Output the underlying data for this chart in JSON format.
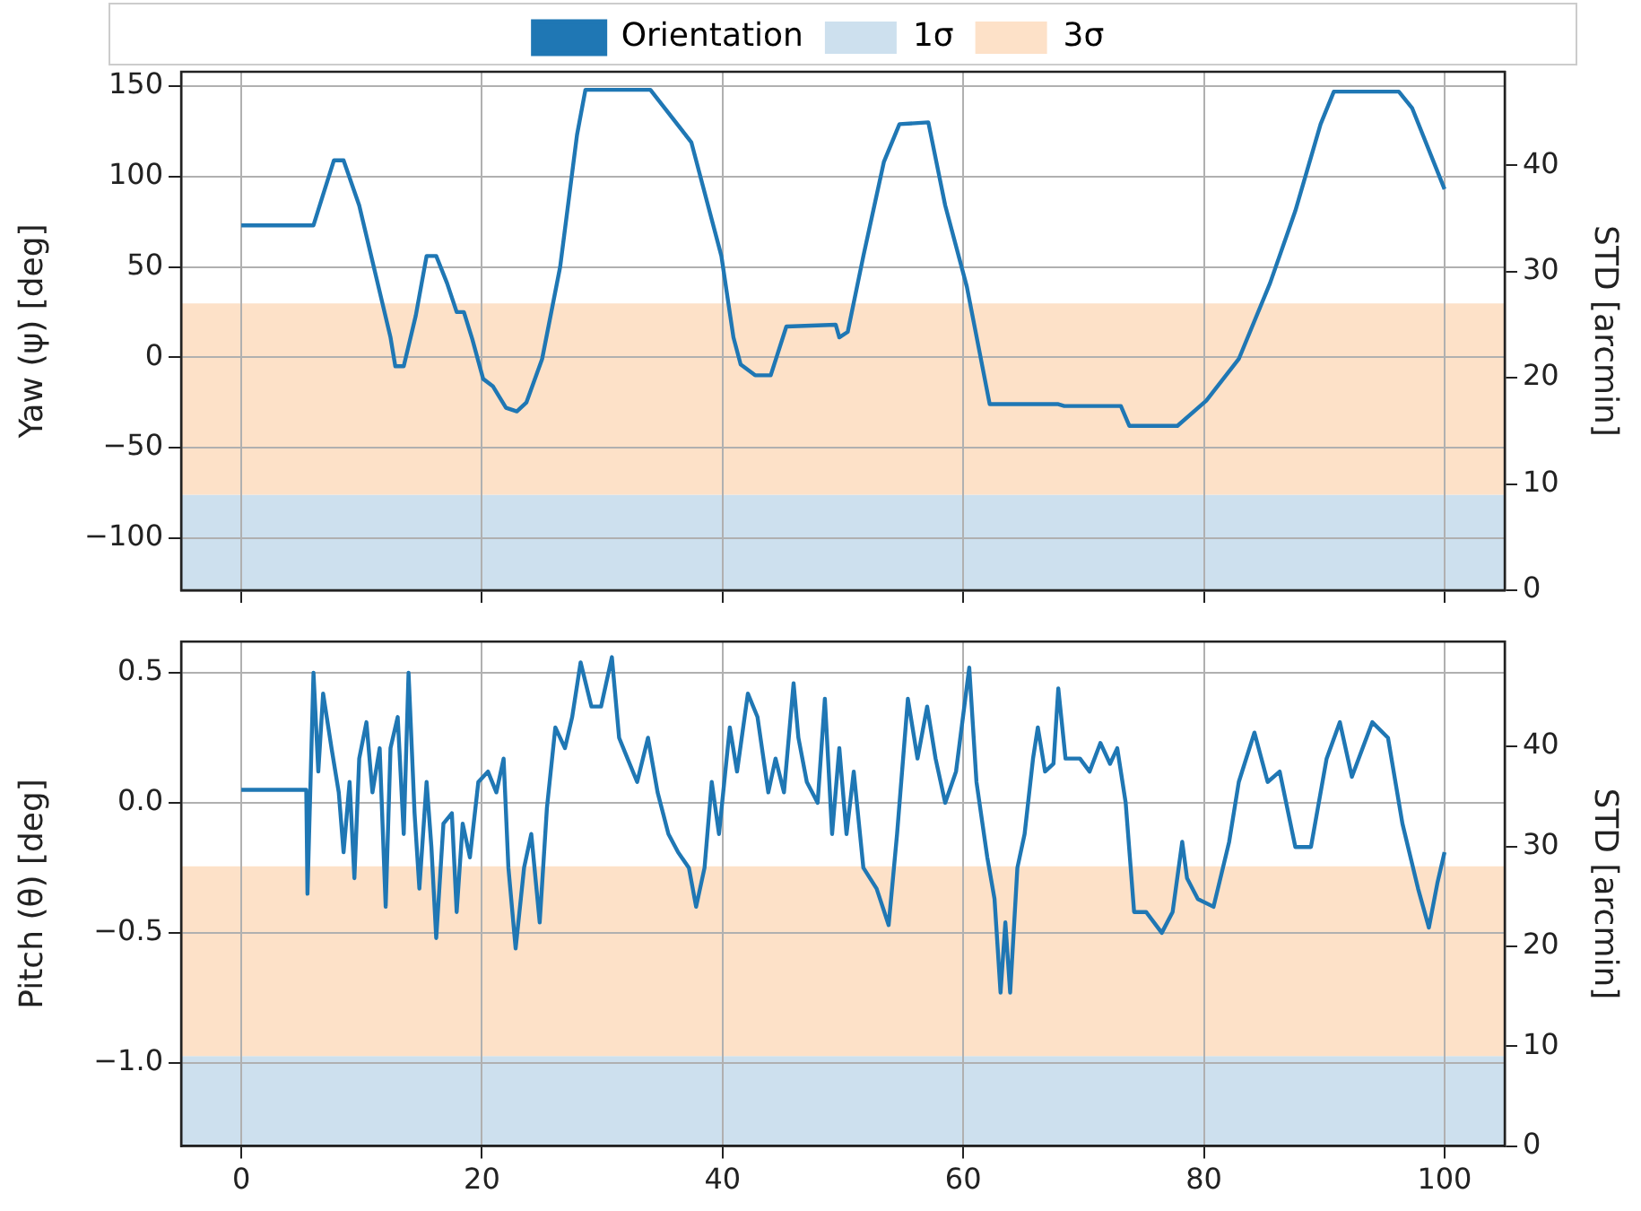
{
  "chart_data": [
    {
      "type": "line",
      "ylabel": "Yaw (ψ) [deg]",
      "y2label": "STD [arcmin]",
      "legend": "top",
      "grid": true,
      "tick_labels": "y",
      "xlim": [
        -5,
        105
      ],
      "xticks": [
        0,
        20,
        40,
        60,
        80,
        100
      ],
      "ylim": [
        -129,
        158
      ],
      "yticks": [
        {
          "value": -100,
          "label": "−100"
        },
        {
          "value": -50,
          "label": "−50"
        },
        0,
        50,
        100,
        150
      ],
      "y2lim": [
        0,
        48.8
      ],
      "y2ticks": [
        0,
        10,
        20,
        30,
        40
      ],
      "bands": [
        {
          "axis": "y2",
          "from": 0,
          "to": 9,
          "label": "1σ",
          "color": "#cde0ee"
        },
        {
          "axis": "y2",
          "from": 9,
          "to": 27,
          "label": "3σ",
          "color": "#fde1c8"
        }
      ],
      "series": [
        {
          "name": "Orientation",
          "color": "#1f77b4",
          "x": [
            0,
            6,
            6.8,
            7.7,
            8.5,
            9.8,
            12.4,
            12.8,
            13.5,
            14.5,
            15.4,
            16.2,
            17.1,
            17.9,
            18.5,
            19.2,
            20.1,
            20.9,
            22,
            22.9,
            23.7,
            25,
            26.5,
            27.9,
            28.6,
            34,
            37.4,
            39.9,
            40.9,
            41.5,
            42.7,
            44,
            45.3,
            49.4,
            49.7,
            50.4,
            51.7,
            53.4,
            54.7,
            57.1,
            58.5,
            60.3,
            62.2,
            67.9,
            68.4,
            73.1,
            73.8,
            77.8,
            80.2,
            82.9,
            85.5,
            87.6,
            89.7,
            90.8,
            96.2,
            97.3,
            100
          ],
          "values": [
            73,
            73,
            90,
            109,
            109,
            84,
            11,
            -5,
            -5,
            23,
            56,
            56,
            41,
            25,
            25,
            10,
            -12,
            -16,
            -28,
            -30,
            -25,
            -1,
            50,
            123,
            148,
            148,
            119,
            56,
            11,
            -4,
            -10,
            -10,
            17,
            18,
            11,
            14,
            56,
            108,
            129,
            130,
            84,
            39,
            -26,
            -26,
            -27,
            -27,
            -38,
            -38,
            -24,
            -1,
            41,
            81,
            129,
            147,
            147,
            138,
            93
          ]
        }
      ]
    },
    {
      "type": "line",
      "ylabel": "Pitch (θ) [deg]",
      "y2label": "STD [arcmin]",
      "grid": true,
      "xlim": [
        -5,
        105
      ],
      "xticks": [
        0,
        20,
        40,
        60,
        80,
        100
      ],
      "ylim": [
        -1.32,
        0.62
      ],
      "yticks": [
        {
          "value": -1,
          "label": "−1.0"
        },
        {
          "value": -0.5,
          "label": "−0.5"
        },
        {
          "value": 0,
          "label": "0.0"
        },
        {
          "value": 0.5,
          "label": "0.5"
        }
      ],
      "y2lim": [
        0,
        50.5
      ],
      "y2ticks": [
        0,
        10,
        20,
        30,
        40
      ],
      "bands": [
        {
          "axis": "y2",
          "from": 0,
          "to": 9,
          "color": "#cde0ee"
        },
        {
          "axis": "y2",
          "from": 9,
          "to": 28,
          "color": "#fde1c8"
        }
      ],
      "series": [
        {
          "color": "#1f77b4",
          "x": [
            0,
            5.4,
            5.5,
            6,
            6.4,
            6.8,
            7.5,
            8.1,
            8.5,
            9,
            9.4,
            9.8,
            10.4,
            10.9,
            11.5,
            12,
            12.4,
            13,
            13.5,
            13.9,
            14.4,
            14.8,
            15.4,
            15.8,
            16.2,
            16.8,
            17.5,
            17.9,
            18.4,
            19,
            19.7,
            20.5,
            21.2,
            21.8,
            22.2,
            22.8,
            23.5,
            24.1,
            24.8,
            25.4,
            26.1,
            26.9,
            27.5,
            28.2,
            29.1,
            29.9,
            30.8,
            31.4,
            32.1,
            32.9,
            33.8,
            34.6,
            35.5,
            36.3,
            37.2,
            37.8,
            38.5,
            39.1,
            39.7,
            40.6,
            41.2,
            42.1,
            42.9,
            43.8,
            44.4,
            45.1,
            45.9,
            46.3,
            47,
            47.9,
            48.5,
            49.1,
            49.7,
            50.3,
            50.9,
            51.7,
            52.8,
            53.8,
            54.5,
            55.4,
            56.2,
            57,
            57.7,
            58.5,
            59.4,
            60.5,
            61.1,
            62,
            62.6,
            63.1,
            63.5,
            63.9,
            64.5,
            65.1,
            65.8,
            66.2,
            66.8,
            67.5,
            67.9,
            68.5,
            69.7,
            70.5,
            71.4,
            72.2,
            72.8,
            73.5,
            74.2,
            75.2,
            76.5,
            77.4,
            78.2,
            78.6,
            79.5,
            80.8,
            82.1,
            82.9,
            84.2,
            85.3,
            86.3,
            87.6,
            88.9,
            90.2,
            91.3,
            92.3,
            94,
            95.3,
            96.5,
            97.8,
            98.7,
            99.4,
            100
          ],
          "values": [
            0.05,
            0.05,
            -0.35,
            0.5,
            0.12,
            0.42,
            0.21,
            0.04,
            -0.19,
            0.08,
            -0.29,
            0.17,
            0.31,
            0.04,
            0.21,
            -0.4,
            0.21,
            0.33,
            -0.12,
            0.5,
            -0.04,
            -0.33,
            0.08,
            -0.17,
            -0.52,
            -0.08,
            -0.04,
            -0.42,
            -0.08,
            -0.21,
            0.08,
            0.12,
            0.04,
            0.17,
            -0.25,
            -0.56,
            -0.25,
            -0.12,
            -0.46,
            -0.02,
            0.29,
            0.21,
            0.33,
            0.54,
            0.37,
            0.37,
            0.56,
            0.25,
            0.17,
            0.08,
            0.25,
            0.04,
            -0.12,
            -0.19,
            -0.25,
            -0.4,
            -0.25,
            0.08,
            -0.12,
            0.29,
            0.12,
            0.42,
            0.33,
            0.04,
            0.17,
            0.04,
            0.46,
            0.25,
            0.08,
            0,
            0.4,
            -0.12,
            0.21,
            -0.12,
            0.12,
            -0.25,
            -0.33,
            -0.47,
            -0.12,
            0.4,
            0.17,
            0.37,
            0.17,
            0,
            0.12,
            0.52,
            0.08,
            -0.21,
            -0.37,
            -0.73,
            -0.46,
            -0.73,
            -0.25,
            -0.12,
            0.17,
            0.29,
            0.12,
            0.15,
            0.44,
            0.17,
            0.17,
            0.12,
            0.23,
            0.15,
            0.21,
            0,
            -0.42,
            -0.42,
            -0.5,
            -0.42,
            -0.15,
            -0.29,
            -0.37,
            -0.4,
            -0.15,
            0.08,
            0.27,
            0.08,
            0.12,
            -0.17,
            -0.17,
            0.17,
            0.31,
            0.1,
            0.31,
            0.25,
            -0.08,
            -0.33,
            -0.48,
            -0.31,
            -0.19
          ]
        }
      ]
    }
  ]
}
